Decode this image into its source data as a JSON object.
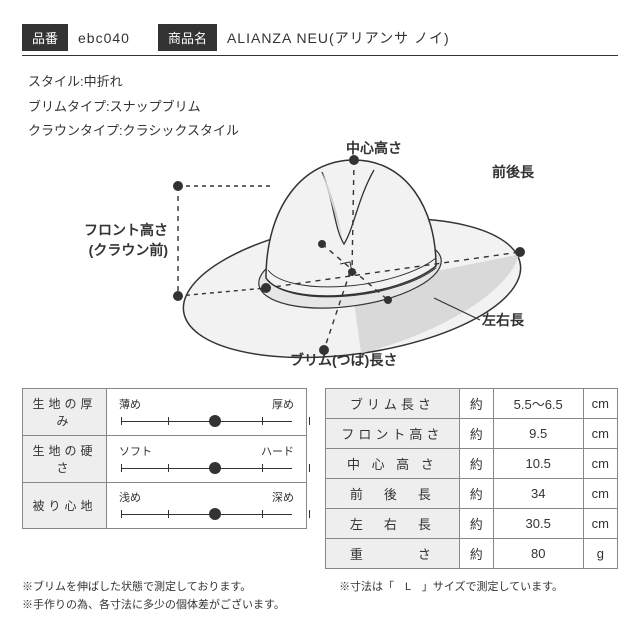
{
  "header": {
    "sku_label": "品番",
    "sku_value": "ebc040",
    "name_label": "商品名",
    "name_value": "ALIANZA NEU(アリアンサ ノイ)"
  },
  "specs": {
    "style": "スタイル:中折れ",
    "brim_type": "ブリムタイプ:スナップブリム",
    "crown_type": "クラウンタイプ:クラシックスタイル"
  },
  "diagram_labels": {
    "center_height": "中心高さ",
    "front_back": "前後長",
    "front_height_l1": "フロント高さ",
    "front_height_l2": "(クラウン前)",
    "left_right": "左右長",
    "brim_length": "ブリム(つば)長さ"
  },
  "scales": [
    {
      "name": "生地の厚み",
      "min": "薄め",
      "max": "厚め",
      "pos": 0.5
    },
    {
      "name": "生地の硬さ",
      "min": "ソフト",
      "max": "ハード",
      "pos": 0.5
    },
    {
      "name": "被り心地",
      "min": "浅め",
      "max": "深め",
      "pos": 0.5
    }
  ],
  "approx_label": "約",
  "measurements": [
    {
      "label": "ブリム長さ",
      "value": "5.5～6.5",
      "unit": "cm"
    },
    {
      "label": "フロント高さ",
      "value": "9.5",
      "unit": "cm"
    },
    {
      "label": "中 心 高 さ",
      "value": "10.5",
      "unit": "cm"
    },
    {
      "label": "前　後　長",
      "value": "34",
      "unit": "cm"
    },
    {
      "label": "左　右　長",
      "value": "30.5",
      "unit": "cm"
    },
    {
      "label": "重　　　さ",
      "value": "80",
      "unit": "g"
    }
  ],
  "notes": {
    "left1": "※ブリムを伸ばした状態で測定しております。",
    "left2": "※手作りの為、各寸法に多少の個体差がございます。",
    "right": "※寸法は「　L　」サイズで測定しています。"
  },
  "colors": {
    "hat_light": "#f2f2f2",
    "hat_mid": "#d9d9d9",
    "hat_dark": "#bfbfbf",
    "line": "#333333",
    "dashed": "#333333"
  }
}
